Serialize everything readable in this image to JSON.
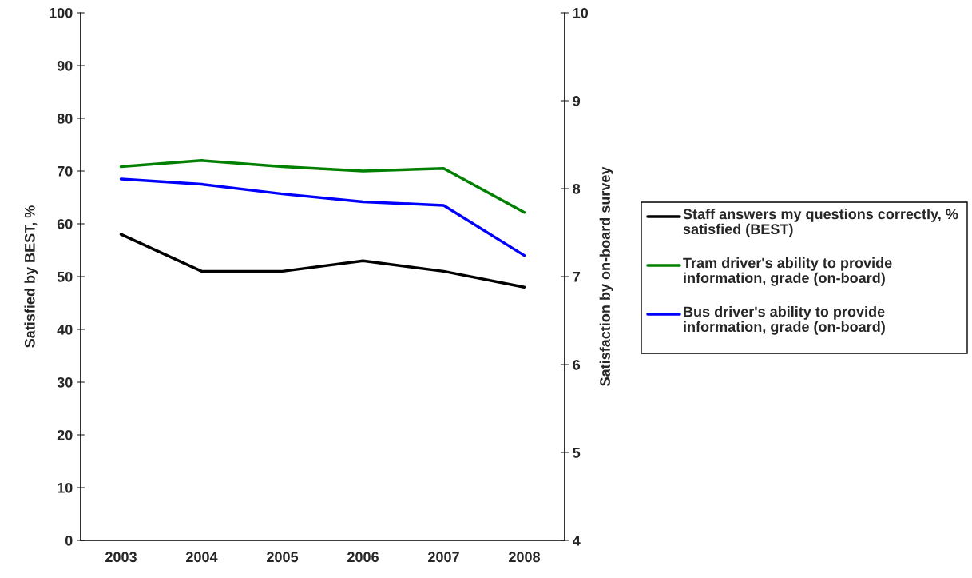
{
  "chart_data": {
    "type": "line",
    "ylabel": "Satisfied by BEST, %",
    "y2label": "Satisfaction by on-board survey",
    "categories": [
      "2003",
      "2004",
      "2005",
      "2006",
      "2007",
      "2008"
    ],
    "series": [
      {
        "name": "Staff answers my questions correctly, % satisfied (BEST)",
        "color": "#000000",
        "values": [
          58,
          51,
          51,
          53,
          51,
          48
        ]
      },
      {
        "name": "Tram driver's ability to provide information, grade (on-board)",
        "color": "#008000",
        "values": [
          8.25,
          8.32,
          8.25,
          8.2,
          8.23,
          7.73
        ],
        "axis": "y2"
      },
      {
        "name": "Bus driver's ability to provide information, grade (on-board)",
        "color": "#0000ff",
        "values": [
          8.11,
          8.05,
          7.94,
          7.85,
          7.81,
          7.24
        ],
        "axis": "y2"
      }
    ],
    "ylim": [
      0,
      100
    ],
    "yticks": [
      0,
      10,
      20,
      30,
      40,
      50,
      60,
      70,
      80,
      90,
      100
    ],
    "y2lim": [
      4,
      10
    ],
    "y2ticks": [
      4,
      5,
      6,
      7,
      8,
      9,
      10
    ],
    "grid": false,
    "legend": "right",
    "marker": "none",
    "line_style": "solid"
  }
}
